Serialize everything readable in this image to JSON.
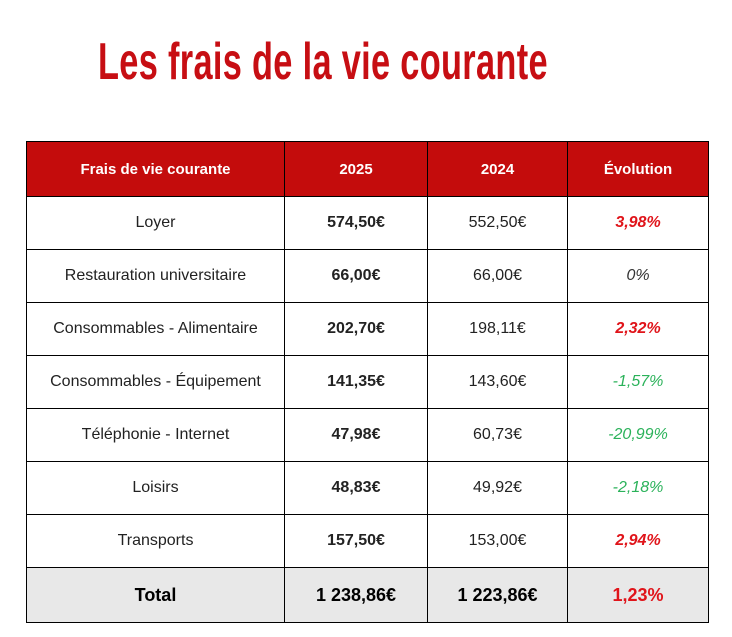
{
  "title": "Les frais de la vie courante",
  "colors": {
    "title": "#c70e13",
    "header_bg": "#c40c0c",
    "increase": "#e0141a",
    "decrease": "#2bb25a",
    "total_bg": "#e8e8e8"
  },
  "table": {
    "headers": [
      "Frais de vie courante",
      "2025",
      "2024",
      "Évolution"
    ],
    "rows": [
      {
        "label": "Loyer",
        "y2025": "574,50€",
        "y2024": "552,50€",
        "evolution": "3,98%",
        "trend": "up"
      },
      {
        "label": "Restauration universitaire",
        "y2025": "66,00€",
        "y2024": "66,00€",
        "evolution": "0%",
        "trend": "flat"
      },
      {
        "label": "Consommables - Alimentaire",
        "y2025": "202,70€",
        "y2024": "198,11€",
        "evolution": "2,32%",
        "trend": "up"
      },
      {
        "label": "Consommables - Équipement",
        "y2025": "141,35€",
        "y2024": "143,60€",
        "evolution": "-1,57%",
        "trend": "down"
      },
      {
        "label": "Téléphonie - Internet",
        "y2025": "47,98€",
        "y2024": "60,73€",
        "evolution": "-20,99%",
        "trend": "down"
      },
      {
        "label": "Loisirs",
        "y2025": "48,83€",
        "y2024": "49,92€",
        "evolution": "-2,18%",
        "trend": "down"
      },
      {
        "label": "Transports",
        "y2025": "157,50€",
        "y2024": "153,00€",
        "evolution": "2,94%",
        "trend": "up"
      }
    ],
    "total": {
      "label": "Total",
      "y2025": "1 238,86€",
      "y2024": "1 223,86€",
      "evolution": "1,23%"
    }
  }
}
